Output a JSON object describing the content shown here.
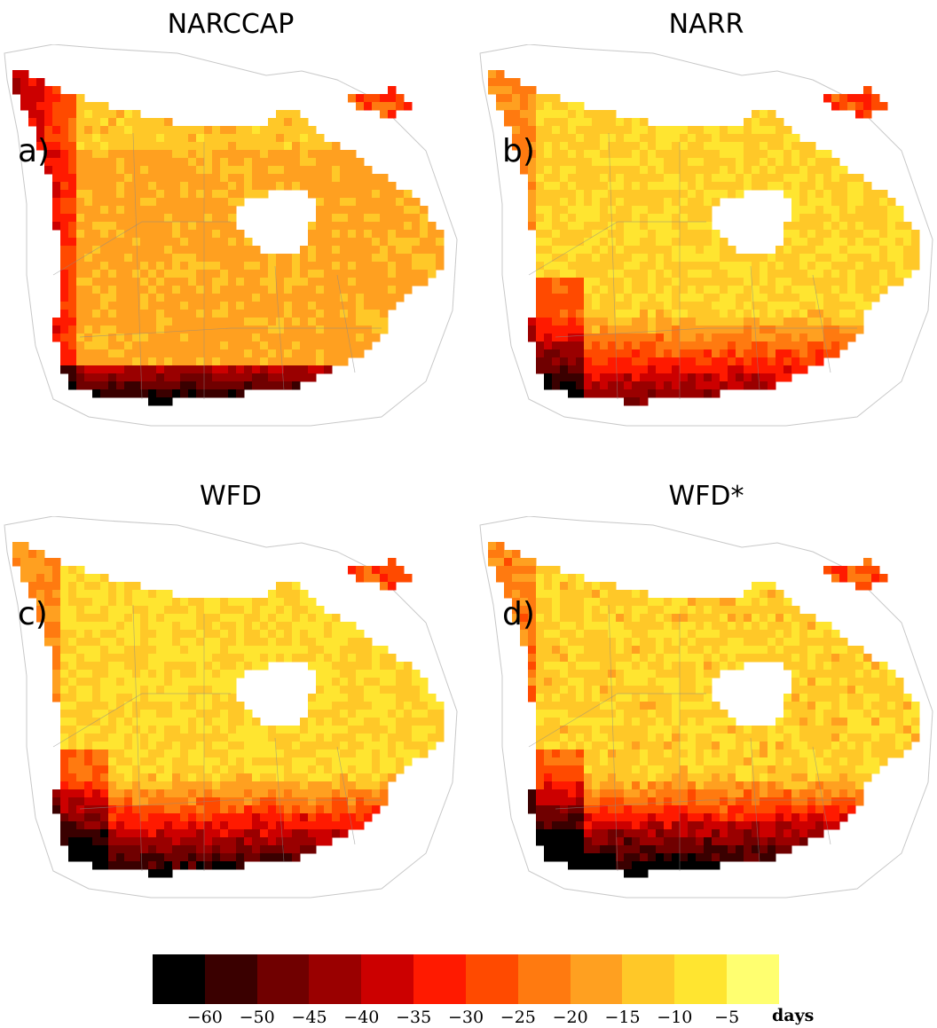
{
  "panels": [
    {
      "title": "NARCCAP",
      "letter": "a)",
      "scheme": "narccap"
    },
    {
      "title": "NARR",
      "letter": "b)",
      "scheme": "narr"
    },
    {
      "title": "WFD",
      "letter": "c)",
      "scheme": "wfd"
    },
    {
      "title": "WFD*",
      "letter": "d)",
      "scheme": "wfdstar"
    }
  ],
  "colorbar": {
    "ticks": [
      "−60",
      "−50",
      "−45",
      "−40",
      "−35",
      "−30",
      "−25",
      "−20",
      "−15",
      "−10",
      "−5"
    ],
    "unit": "days",
    "colors": [
      "#000000",
      "#3a0000",
      "#700000",
      "#9a0000",
      "#cc0000",
      "#ff1a00",
      "#ff4a00",
      "#ff7a10",
      "#ffa020",
      "#ffc828",
      "#ffe530",
      "#ffff70"
    ]
  }
}
